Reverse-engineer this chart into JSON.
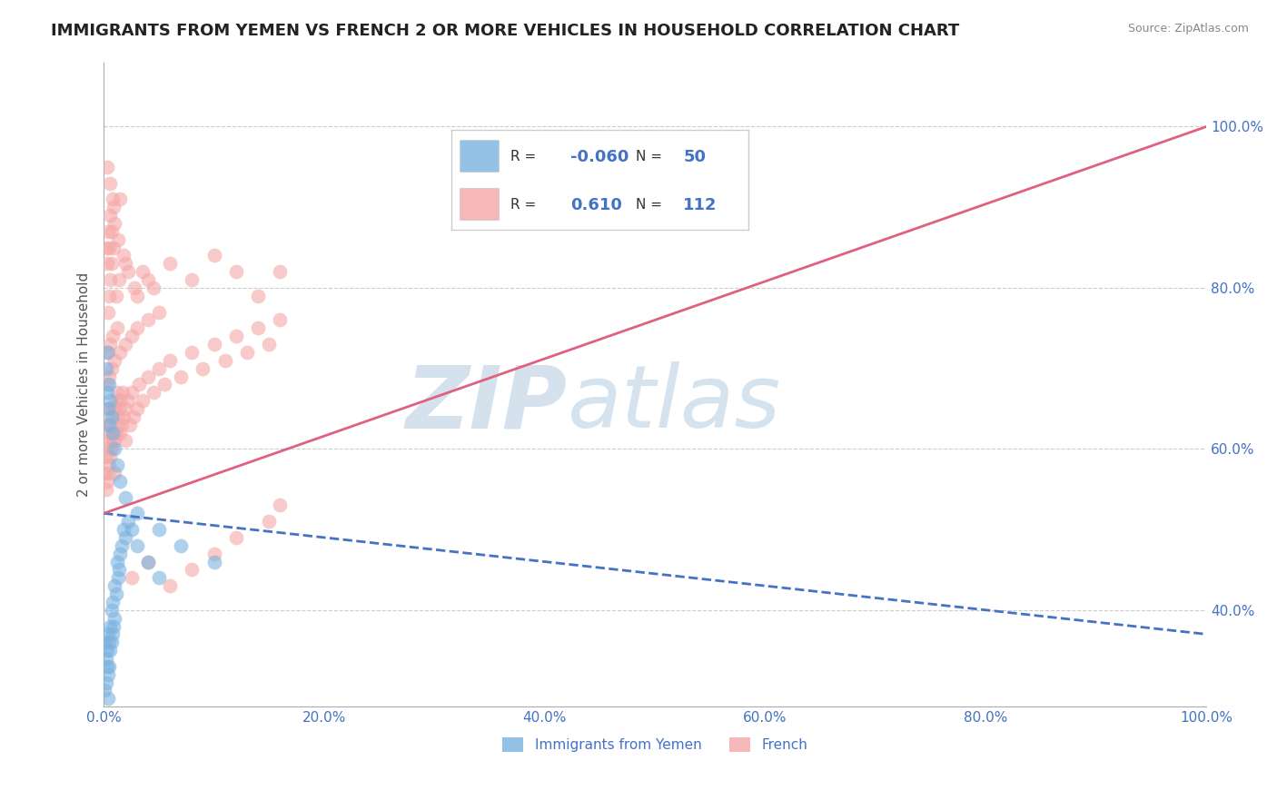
{
  "title": "IMMIGRANTS FROM YEMEN VS FRENCH 2 OR MORE VEHICLES IN HOUSEHOLD CORRELATION CHART",
  "source_text": "Source: ZipAtlas.com",
  "ylabel": "2 or more Vehicles in Household",
  "xticklabels": [
    "0.0%",
    "20.0%",
    "40.0%",
    "60.0%",
    "80.0%",
    "100.0%"
  ],
  "yticklabels": [
    "40.0%",
    "60.0%",
    "80.0%",
    "100.0%"
  ],
  "xlim": [
    0.0,
    100.0
  ],
  "ylim": [
    28.0,
    108.0
  ],
  "ytick_positions": [
    40.0,
    60.0,
    80.0,
    100.0
  ],
  "xtick_positions": [
    0.0,
    20.0,
    40.0,
    60.0,
    80.0,
    100.0
  ],
  "blue_color": "#7ab3e0",
  "pink_color": "#f4a7a7",
  "blue_line_color": "#4472c4",
  "pink_line_color": "#e06080",
  "legend_r_blue": "-0.060",
  "legend_n_blue": "50",
  "legend_r_pink": "0.610",
  "legend_n_pink": "112",
  "legend_label_blue": "Immigrants from Yemen",
  "legend_label_pink": "French",
  "watermark_zip": "ZIP",
  "watermark_atlas": "atlas",
  "blue_scatter_x": [
    0.1,
    0.2,
    0.3,
    0.3,
    0.4,
    0.4,
    0.5,
    0.5,
    0.6,
    0.6,
    0.7,
    0.7,
    0.8,
    0.8,
    0.9,
    1.0,
    1.0,
    1.1,
    1.2,
    1.3,
    1.4,
    1.5,
    1.6,
    1.8,
    2.0,
    2.2,
    2.5,
    3.0,
    4.0,
    5.0,
    0.2,
    0.3,
    0.3,
    0.4,
    0.5,
    0.5,
    0.6,
    0.7,
    0.8,
    1.0,
    1.2,
    1.5,
    2.0,
    3.0,
    5.0,
    7.0,
    10.0,
    0.1,
    0.2,
    0.4
  ],
  "blue_scatter_y": [
    36,
    34,
    33,
    35,
    32,
    37,
    33,
    36,
    35,
    38,
    36,
    40,
    37,
    41,
    38,
    39,
    43,
    42,
    46,
    44,
    45,
    47,
    48,
    50,
    49,
    51,
    50,
    48,
    46,
    44,
    70,
    72,
    67,
    65,
    63,
    68,
    66,
    64,
    62,
    60,
    58,
    56,
    54,
    52,
    50,
    48,
    46,
    30,
    31,
    29
  ],
  "pink_scatter_x": [
    0.1,
    0.2,
    0.2,
    0.3,
    0.3,
    0.3,
    0.4,
    0.4,
    0.5,
    0.5,
    0.5,
    0.6,
    0.6,
    0.7,
    0.7,
    0.8,
    0.8,
    0.9,
    1.0,
    1.0,
    1.0,
    1.1,
    1.1,
    1.2,
    1.2,
    1.3,
    1.4,
    1.5,
    1.5,
    1.6,
    1.7,
    1.8,
    2.0,
    2.0,
    2.2,
    2.4,
    2.5,
    2.7,
    3.0,
    3.2,
    3.5,
    4.0,
    4.5,
    5.0,
    5.5,
    6.0,
    7.0,
    8.0,
    9.0,
    10.0,
    11.0,
    12.0,
    13.0,
    14.0,
    15.0,
    16.0,
    0.3,
    0.4,
    0.5,
    0.6,
    0.7,
    0.8,
    1.0,
    1.2,
    1.5,
    2.0,
    2.5,
    3.0,
    4.0,
    5.0,
    0.2,
    0.3,
    0.4,
    0.5,
    0.6,
    0.7,
    0.8,
    1.0,
    1.3,
    1.8,
    2.2,
    2.8,
    3.5,
    4.5,
    6.0,
    8.0,
    10.0,
    12.0,
    14.0,
    16.0,
    0.4,
    0.5,
    0.6,
    0.7,
    0.9,
    1.1,
    1.4,
    2.0,
    3.0,
    4.0,
    6.0,
    8.0,
    10.0,
    12.0,
    15.0,
    16.0,
    0.3,
    0.6,
    0.9,
    1.5,
    2.5,
    4.0
  ],
  "pink_scatter_y": [
    57,
    55,
    59,
    56,
    60,
    63,
    57,
    61,
    58,
    62,
    65,
    59,
    63,
    60,
    64,
    61,
    65,
    62,
    57,
    61,
    65,
    62,
    66,
    63,
    67,
    64,
    65,
    62,
    66,
    63,
    67,
    64,
    61,
    65,
    66,
    63,
    67,
    64,
    65,
    68,
    66,
    69,
    67,
    70,
    68,
    71,
    69,
    72,
    70,
    73,
    71,
    74,
    72,
    75,
    73,
    76,
    68,
    72,
    69,
    73,
    70,
    74,
    71,
    75,
    72,
    73,
    74,
    75,
    76,
    77,
    85,
    83,
    87,
    85,
    89,
    87,
    91,
    88,
    86,
    84,
    82,
    80,
    82,
    80,
    83,
    81,
    84,
    82,
    79,
    82,
    77,
    79,
    81,
    83,
    85,
    79,
    81,
    83,
    79,
    81,
    43,
    45,
    47,
    49,
    51,
    53,
    95,
    93,
    90,
    91,
    44,
    46
  ],
  "blue_trend_x": [
    0.0,
    100.0
  ],
  "blue_trend_y": [
    52.0,
    37.0
  ],
  "pink_trend_x": [
    0.0,
    100.0
  ],
  "pink_trend_y": [
    52.0,
    100.0
  ],
  "title_fontsize": 13,
  "axis_label_fontsize": 11,
  "tick_fontsize": 11,
  "tick_color": "#4472c4",
  "background_color": "#ffffff",
  "grid_color": "#cccccc"
}
